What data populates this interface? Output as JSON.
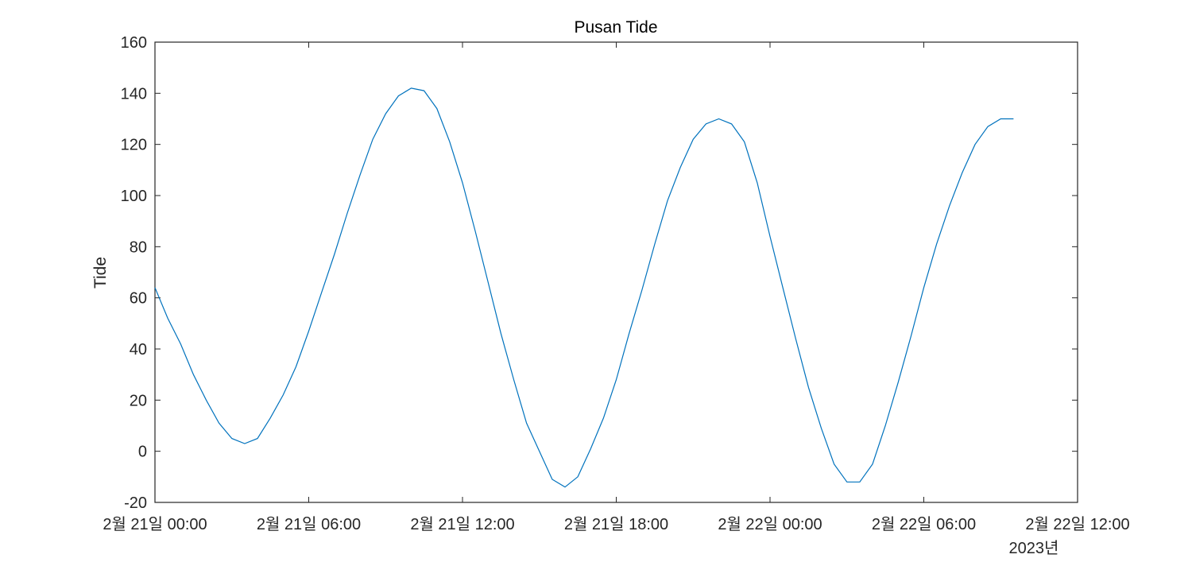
{
  "chart_data": {
    "type": "line",
    "title": "Pusan Tide",
    "xlabel": "",
    "ylabel": "Tide",
    "x_secondary_label": "2023년",
    "ylim": [
      -20,
      160
    ],
    "xlim": [
      "2023-02-21 00:00",
      "2023-02-22 12:00"
    ],
    "y_ticks": [
      -20,
      0,
      20,
      40,
      60,
      80,
      100,
      120,
      140,
      160
    ],
    "x_ticks": [
      {
        "time": "2023-02-21 00:00",
        "label": "2월 21일 00:00"
      },
      {
        "time": "2023-02-21 06:00",
        "label": "2월 21일 06:00"
      },
      {
        "time": "2023-02-21 12:00",
        "label": "2월 21일 12:00"
      },
      {
        "time": "2023-02-21 18:00",
        "label": "2월 21일 18:00"
      },
      {
        "time": "2023-02-22 00:00",
        "label": "2월 22일 00:00"
      },
      {
        "time": "2023-02-22 06:00",
        "label": "2월 22일 06:00"
      },
      {
        "time": "2023-02-22 12:00",
        "label": "2월 22일 12:00"
      }
    ],
    "grid": false,
    "line_color": "#0072BD",
    "series": [
      {
        "time": [
          "2023-02-21 00:00",
          "2023-02-21 00:30",
          "2023-02-21 01:00",
          "2023-02-21 01:30",
          "2023-02-21 02:00",
          "2023-02-21 02:30",
          "2023-02-21 03:00",
          "2023-02-21 03:30",
          "2023-02-21 04:00",
          "2023-02-21 04:30",
          "2023-02-21 05:00",
          "2023-02-21 05:30",
          "2023-02-21 06:00",
          "2023-02-21 06:30",
          "2023-02-21 07:00",
          "2023-02-21 07:30",
          "2023-02-21 08:00",
          "2023-02-21 08:30",
          "2023-02-21 09:00",
          "2023-02-21 09:30",
          "2023-02-21 10:00",
          "2023-02-21 10:30",
          "2023-02-21 11:00",
          "2023-02-21 11:30",
          "2023-02-21 12:00",
          "2023-02-21 12:30",
          "2023-02-21 13:00",
          "2023-02-21 13:30",
          "2023-02-21 14:00",
          "2023-02-21 14:30",
          "2023-02-21 15:00",
          "2023-02-21 15:30",
          "2023-02-21 16:00",
          "2023-02-21 16:30",
          "2023-02-21 17:00",
          "2023-02-21 17:30",
          "2023-02-21 18:00",
          "2023-02-21 18:30",
          "2023-02-21 19:00",
          "2023-02-21 19:30",
          "2023-02-21 20:00",
          "2023-02-21 20:30",
          "2023-02-21 21:00",
          "2023-02-21 21:30",
          "2023-02-21 22:00",
          "2023-02-21 22:30",
          "2023-02-21 23:00",
          "2023-02-21 23:30",
          "2023-02-22 00:00",
          "2023-02-22 00:30",
          "2023-02-22 01:00",
          "2023-02-22 01:30",
          "2023-02-22 02:00",
          "2023-02-22 02:30",
          "2023-02-22 03:00",
          "2023-02-22 03:30",
          "2023-02-22 04:00",
          "2023-02-22 04:30",
          "2023-02-22 05:00",
          "2023-02-22 05:30",
          "2023-02-22 06:00",
          "2023-02-22 06:30",
          "2023-02-22 07:00",
          "2023-02-22 07:30",
          "2023-02-22 08:00",
          "2023-02-22 08:30",
          "2023-02-22 09:00",
          "2023-02-22 09:30"
        ],
        "values": [
          64,
          52,
          42,
          30,
          20,
          11,
          5,
          3,
          5,
          13,
          22,
          33,
          47,
          62,
          77,
          93,
          108,
          122,
          132,
          139,
          142,
          141,
          134,
          121,
          105,
          86,
          66,
          46,
          28,
          11,
          0,
          -11,
          -14,
          -10,
          1,
          13,
          28,
          46,
          63,
          81,
          98,
          111,
          122,
          128,
          130,
          128,
          121,
          105,
          84,
          64,
          44,
          25,
          9,
          -5,
          -12,
          -12,
          -5,
          10,
          27,
          45,
          64,
          81,
          96,
          109,
          120,
          127,
          130,
          130
        ]
      }
    ]
  }
}
